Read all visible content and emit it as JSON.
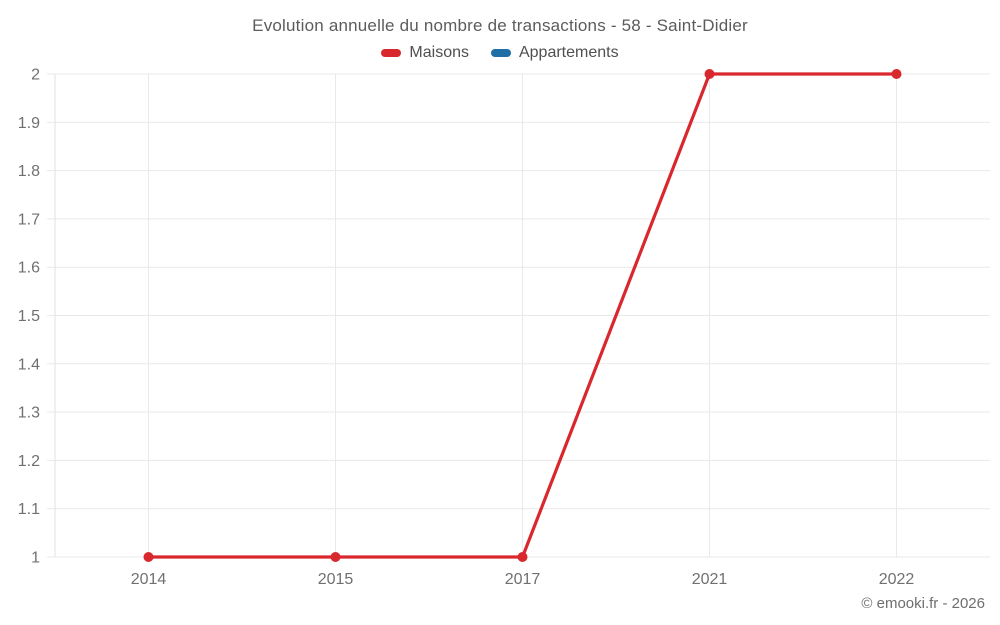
{
  "chart_data": {
    "type": "line",
    "title": "Evolution annuelle du nombre de transactions - 58 - Saint-Didier",
    "categories": [
      "2014",
      "2015",
      "2017",
      "2021",
      "2022"
    ],
    "series": [
      {
        "name": "Maisons",
        "color": "#d9272e",
        "values": [
          1,
          1,
          1,
          2,
          2
        ]
      },
      {
        "name": "Appartements",
        "color": "#1d6fa5",
        "values": []
      }
    ],
    "xlabel": "",
    "ylabel": "",
    "ylim": [
      1,
      2
    ],
    "ytick_labels": [
      "1",
      "1.1",
      "1.2",
      "1.3",
      "1.4",
      "1.5",
      "1.6",
      "1.7",
      "1.8",
      "1.9",
      "2"
    ],
    "grid": true,
    "legend_position": "top"
  },
  "footer": {
    "copyright": "© emooki.fr - 2026"
  },
  "colors": {
    "grid": "#e9e9e9",
    "axis": "#e2e2e2",
    "tick_label": "#707070",
    "title": "#5c5c5c",
    "legend_label": "#4f4f4f",
    "background": "#ffffff"
  }
}
